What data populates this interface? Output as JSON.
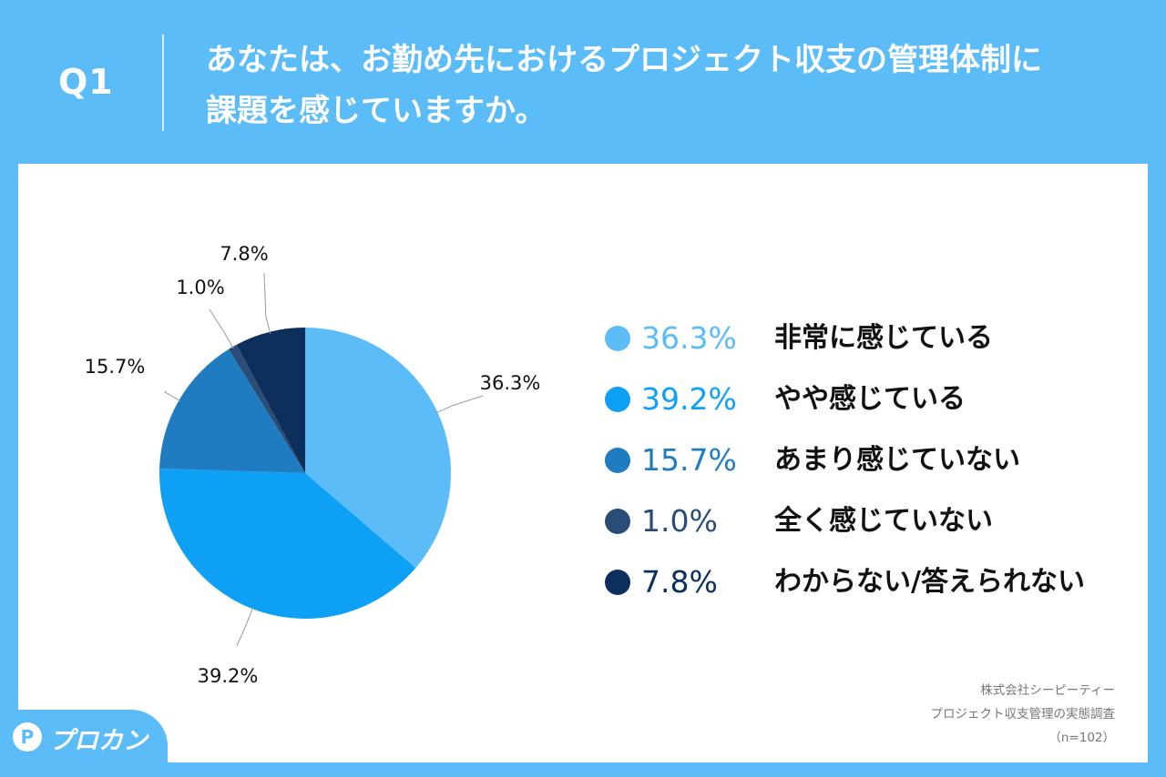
{
  "header": {
    "q_label": "Q1",
    "question_line1": "あなたは、お勤め先におけるプロジェクト収支の管理体制に",
    "question_line2": "課題を感じていますか。"
  },
  "chart_data": {
    "type": "pie",
    "categories": [
      "非常に感じている",
      "やや感じている",
      "あまり感じていない",
      "全く感じていない",
      "わからない/答えられない"
    ],
    "values": [
      36.3,
      39.2,
      15.7,
      1.0,
      7.8
    ],
    "value_labels": [
      "36.3%",
      "39.2%",
      "15.7%",
      "1.0%",
      "7.8%"
    ],
    "colors": [
      "#5bbcf8",
      "#0ea0f5",
      "#1f7cc0",
      "#2a4d78",
      "#0d2f5c"
    ],
    "legend_placement": "right"
  },
  "legend": {
    "items": [
      {
        "pct": "36.3%",
        "label": "非常に感じている",
        "color": "#5bbcf8"
      },
      {
        "pct": "39.2%",
        "label": "やや感じている",
        "color": "#0ea0f5"
      },
      {
        "pct": "15.7%",
        "label": "あまり感じていない",
        "color": "#1f7cc0"
      },
      {
        "pct": "1.0%",
        "label": "全く感じていない",
        "color": "#2a4d78"
      },
      {
        "pct": "7.8%",
        "label": "わからない/答えられない",
        "color": "#0d2f5c"
      }
    ]
  },
  "source": {
    "line1": "株式会社シーピーティー",
    "line2": "プロジェクト収支管理の実態調査",
    "line3": "（n=102）"
  },
  "logo": {
    "mark": "P",
    "text": "プロカン"
  }
}
